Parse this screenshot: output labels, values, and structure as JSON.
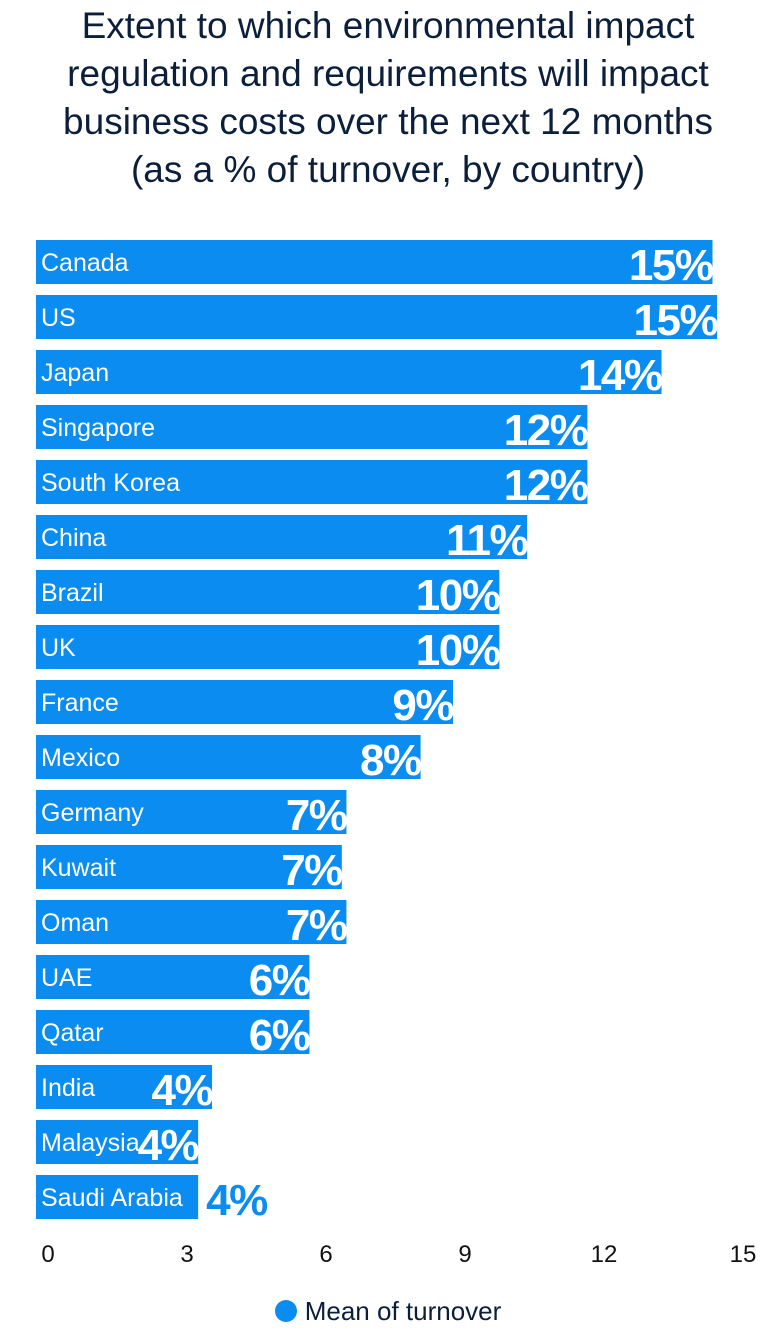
{
  "title_lines": [
    "Extent to which environmental impact",
    "regulation and requirements will impact",
    "business costs over the next 12 months",
    "(as a % of turnover, by country)"
  ],
  "colors": {
    "bar": "#0a8cf0",
    "text": "#0b1f3a"
  },
  "chart_data": {
    "type": "bar",
    "orientation": "horizontal",
    "title": "Extent to which environmental impact regulation and requirements will impact business costs over the next 12 months (as a % of turnover, by country)",
    "categories": [
      "Canada",
      "US",
      "Japan",
      "Singapore",
      "South Korea",
      "China",
      "Brazil",
      "UK",
      "France",
      "Mexico",
      "Germany",
      "Kuwait",
      "Oman",
      "UAE",
      "Qatar",
      "India",
      "Malaysia",
      "Saudi Arabia"
    ],
    "series": [
      {
        "name": "Mean of turnover",
        "values": [
          14.6,
          14.7,
          13.5,
          11.9,
          11.9,
          10.6,
          10.0,
          10.0,
          9.0,
          8.3,
          6.7,
          6.6,
          6.7,
          5.9,
          5.9,
          3.8,
          3.5,
          3.5
        ],
        "labels": [
          "15%",
          "15%",
          "14%",
          "12%",
          "12%",
          "11%",
          "10%",
          "10%",
          "9%",
          "8%",
          "7%",
          "7%",
          "7%",
          "6%",
          "6%",
          "4%",
          "4%",
          "4%"
        ]
      }
    ],
    "xlim": [
      0,
      15
    ],
    "xticks": [
      "0",
      "3",
      "6",
      "9",
      "12",
      "15"
    ],
    "xlabel": "",
    "ylabel": "",
    "legend": {
      "position": "bottom",
      "label": "Mean of turnover"
    },
    "grid": false
  }
}
